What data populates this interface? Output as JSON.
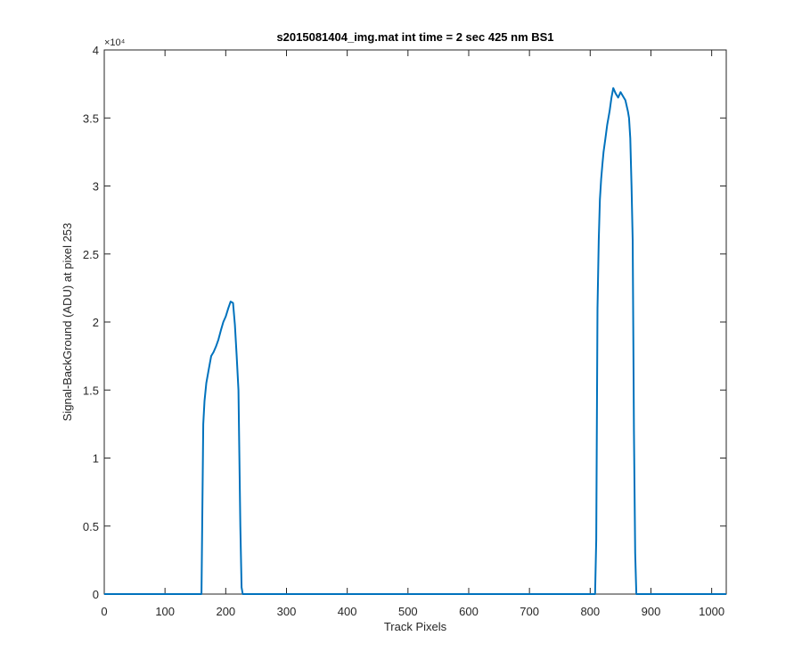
{
  "chart_data": {
    "type": "line",
    "title": "s2015081404_img.mat int time = 2 sec  425 nm BS1",
    "xlabel": "Track Pixels",
    "ylabel": "Signal-BackGround (ADU) at pixel 253",
    "y_exponent_label": "×10⁴",
    "xlim": [
      0,
      1024
    ],
    "ylim": [
      0,
      40000
    ],
    "x_ticks": [
      0,
      100,
      200,
      300,
      400,
      500,
      600,
      700,
      800,
      900,
      1000
    ],
    "x_tick_labels": [
      "0",
      "100",
      "200",
      "300",
      "400",
      "500",
      "600",
      "700",
      "800",
      "900",
      "1000"
    ],
    "y_ticks": [
      0,
      5000,
      10000,
      15000,
      20000,
      25000,
      30000,
      35000,
      40000
    ],
    "y_tick_labels": [
      "0",
      "0.5",
      "1",
      "1.5",
      "2",
      "2.5",
      "3",
      "3.5",
      "4"
    ],
    "grid": false,
    "line_color": "#0072BD",
    "series": [
      {
        "x": [
          0,
          160,
          163,
          165,
          168,
          172,
          176,
          180,
          184,
          188,
          192,
          196,
          200,
          204,
          208,
          212,
          215,
          218,
          221,
          224,
          226,
          228,
          230,
          300,
          400,
          500,
          600,
          700,
          800,
          808,
          810,
          812,
          814,
          816,
          818,
          820,
          822,
          825,
          828,
          832,
          835,
          838,
          842,
          846,
          850,
          854,
          858,
          862,
          864,
          866,
          868,
          870,
          872,
          874,
          876,
          880,
          900,
          1000,
          1024
        ],
        "y": [
          0,
          0,
          12500,
          14200,
          15500,
          16500,
          17500,
          17800,
          18200,
          18700,
          19400,
          20000,
          20400,
          21000,
          21500,
          21400,
          19800,
          17500,
          15000,
          5000,
          500,
          0,
          0,
          0,
          0,
          0,
          0,
          0,
          0,
          0,
          4000,
          21000,
          26000,
          29000,
          30500,
          31500,
          32500,
          33500,
          34500,
          35500,
          36500,
          37200,
          36800,
          36500,
          36900,
          36600,
          36300,
          35500,
          35000,
          33500,
          30000,
          26000,
          12000,
          3000,
          0,
          0,
          0,
          0,
          0
        ]
      }
    ]
  }
}
